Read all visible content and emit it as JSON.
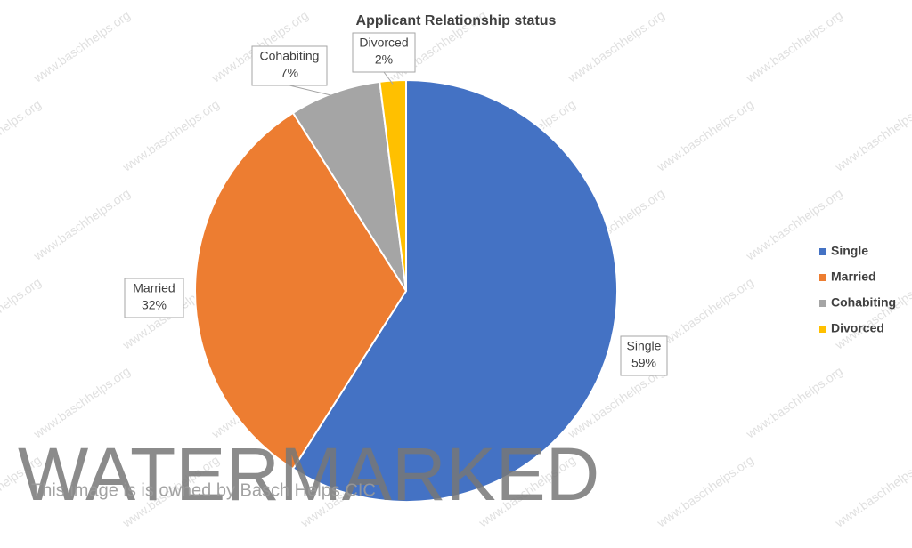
{
  "chart_data": {
    "type": "pie",
    "title": "Applicant Relationship status",
    "categories": [
      "Single",
      "Married",
      "Cohabiting",
      "Divorced"
    ],
    "values": [
      59,
      32,
      7,
      2
    ],
    "value_labels": [
      "59%",
      "32%",
      "7%",
      "2%"
    ],
    "colors": [
      "#4472c4",
      "#ed7d31",
      "#a5a5a5",
      "#ffc000"
    ],
    "legend": "right"
  },
  "watermark": {
    "text": "WATERMARKED",
    "notice": "This image is is owned by Basch Helps CIC",
    "url": "www.baschhelps.org"
  }
}
